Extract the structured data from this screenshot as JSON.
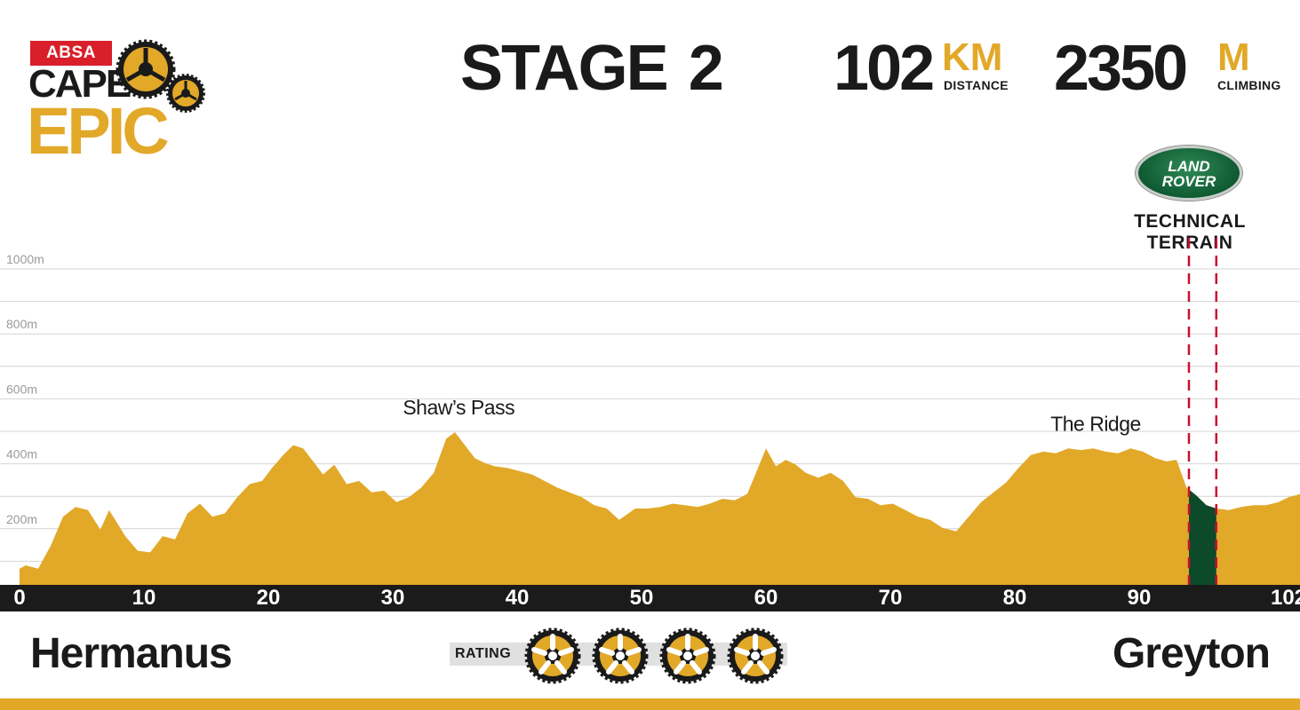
{
  "logo": {
    "sponsor": "ABSA",
    "line1": "CAPE",
    "line2": "EPIC"
  },
  "header": {
    "stage_label": "STAGE",
    "stage_number": "2",
    "distance_value": "102",
    "distance_unit": "KM",
    "distance_caption": "DISTANCE",
    "climbing_value": "2350",
    "climbing_unit": "M",
    "climbing_caption": "CLIMBING"
  },
  "sponsor_badge": {
    "line1": "LAND",
    "line2": "ROVER",
    "caption_line1": "TECHNICAL",
    "caption_line2": "TERRAIN"
  },
  "footer": {
    "start": "Hermanus",
    "finish": "Greyton",
    "rating_label": "RATING",
    "rating_value": 4,
    "rating_max": 4
  },
  "colors": {
    "profile_fill": "#e2a828",
    "technical_fill": "#0c4a2a",
    "technical_marker": "#c8102e",
    "ruler": "#1b1b1b",
    "accent": "#e2a828"
  },
  "chart_data": {
    "type": "area",
    "title": "",
    "xlabel": "",
    "ylabel": "",
    "xlim": [
      0,
      103
    ],
    "ylim": [
      0,
      1000
    ],
    "x_ticks": [
      0,
      10,
      20,
      30,
      40,
      50,
      60,
      70,
      80,
      90,
      102
    ],
    "y_ticks": [
      200,
      400,
      600,
      800,
      1000
    ],
    "y_tick_labels": [
      "200m",
      "400m",
      "600m",
      "800m",
      "1000m"
    ],
    "grid": true,
    "x": [
      0,
      0.5,
      1.5,
      2.5,
      3.5,
      4.5,
      5.5,
      6.5,
      7.2,
      8.5,
      9.5,
      10.5,
      11.5,
      12.5,
      13.5,
      14.5,
      15.5,
      16.5,
      17.5,
      18.5,
      19.5,
      20.3,
      21.2,
      22,
      22.8,
      23.6,
      24.4,
      25.3,
      26.3,
      27.3,
      28.3,
      29.3,
      30.3,
      31.3,
      32.3,
      33.3,
      34.3,
      35,
      35.8,
      36.6,
      37.4,
      38.2,
      39.2,
      40.2,
      41.2,
      42.2,
      43.2,
      44.2,
      45.2,
      46.2,
      47.2,
      48.2,
      49.5,
      50.5,
      51.5,
      52.5,
      53.5,
      54.5,
      55.5,
      56.5,
      57.5,
      58.5,
      59.2,
      60,
      60.8,
      61.6,
      62.4,
      63.2,
      64.2,
      65.2,
      66.2,
      67.2,
      68.2,
      69.2,
      70.2,
      71.2,
      72.2,
      73.2,
      74.2,
      75.3,
      76.3,
      77.3,
      78.3,
      79.3,
      80.3,
      81.3,
      82.3,
      83.3,
      84.3,
      85.3,
      86.3,
      87.3,
      88.3,
      89.3,
      90.3,
      91.3,
      92.2,
      93,
      93.8,
      94.6,
      95.4,
      96.2,
      97.2,
      98.2,
      99.2,
      100.2,
      101.2,
      102,
      103
    ],
    "y": [
      50,
      60,
      50,
      120,
      210,
      240,
      230,
      170,
      230,
      150,
      105,
      100,
      150,
      140,
      220,
      250,
      210,
      220,
      270,
      310,
      320,
      360,
      400,
      430,
      420,
      380,
      340,
      370,
      310,
      320,
      285,
      290,
      255,
      270,
      300,
      345,
      450,
      470,
      430,
      390,
      375,
      365,
      360,
      350,
      340,
      320,
      300,
      285,
      270,
      245,
      235,
      200,
      235,
      235,
      240,
      250,
      245,
      240,
      250,
      265,
      260,
      280,
      345,
      420,
      365,
      385,
      370,
      345,
      330,
      345,
      320,
      270,
      265,
      245,
      250,
      230,
      210,
      200,
      175,
      165,
      210,
      255,
      285,
      315,
      360,
      400,
      410,
      405,
      420,
      415,
      420,
      410,
      405,
      420,
      410,
      390,
      380,
      385,
      300,
      275,
      245,
      235,
      230,
      240,
      245,
      245,
      255,
      270,
      280
    ],
    "peak_labels": [
      {
        "text": "Shaw’s Pass",
        "x": 35.3,
        "y": 470
      },
      {
        "text": "The Ridge",
        "x": 86.5,
        "y": 420
      }
    ],
    "highlight_range": {
      "x0": 94.0,
      "x1": 96.2,
      "label": "TECHNICAL TERRAIN"
    }
  }
}
